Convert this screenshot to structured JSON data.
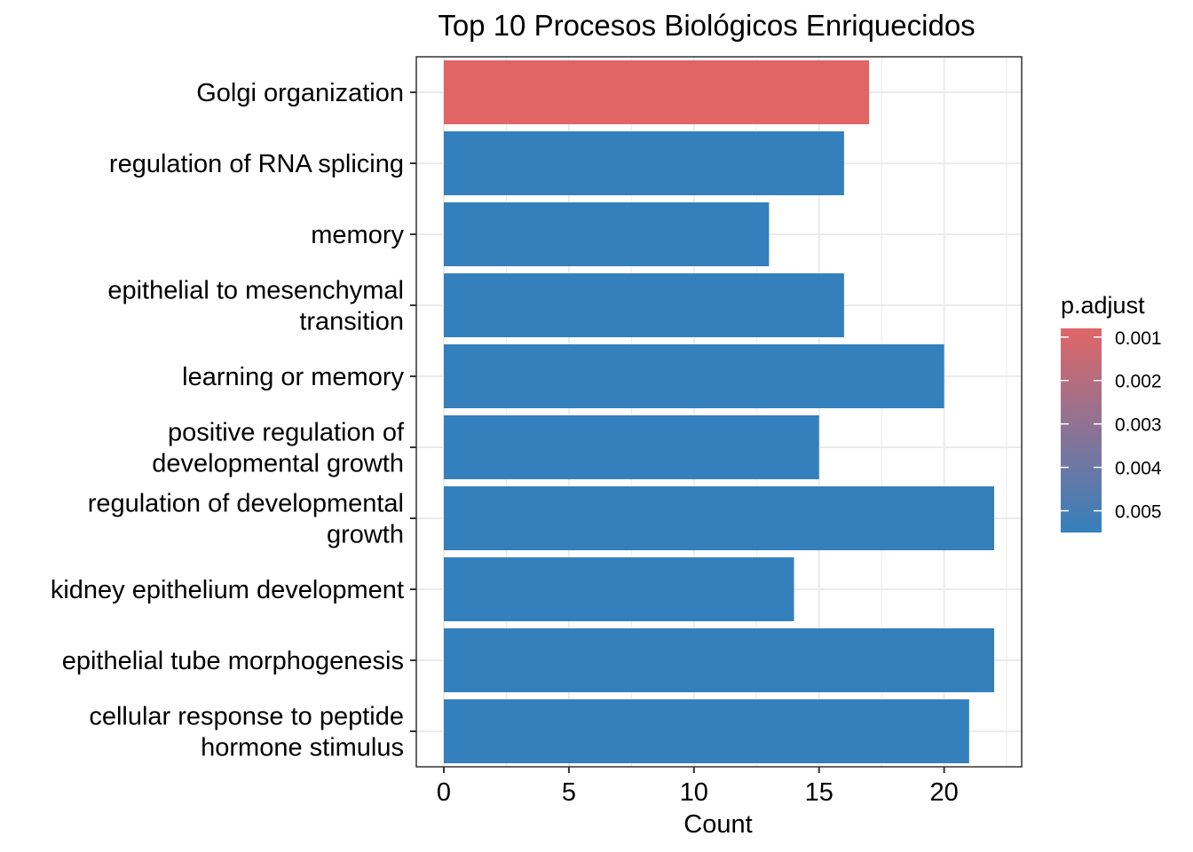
{
  "chart_data": {
    "type": "bar",
    "orientation": "horizontal",
    "title": "Top 10 Procesos Biológicos Enriquecidos",
    "xlabel": "Count",
    "ylabel": "",
    "xlim": [
      -1.1,
      23.1
    ],
    "xticks": [
      "0",
      "5",
      "10",
      "15",
      "20"
    ],
    "grid": true,
    "categories": [
      [
        "Golgi organization"
      ],
      [
        "regulation of RNA splicing"
      ],
      [
        "memory"
      ],
      [
        "epithelial to mesenchymal",
        "transition"
      ],
      [
        "learning or memory"
      ],
      [
        "positive regulation of",
        "developmental growth"
      ],
      [
        "regulation of developmental",
        "growth"
      ],
      [
        "kidney epithelium development"
      ],
      [
        "epithelial tube morphogenesis"
      ],
      [
        "cellular response to peptide",
        "hormone stimulus"
      ]
    ],
    "values": [
      17,
      16,
      13,
      16,
      20,
      15,
      22,
      14,
      22,
      21
    ],
    "bar_colors": [
      "#E06666",
      "#3480BC",
      "#3480BC",
      "#3480BC",
      "#3480BC",
      "#3480BC",
      "#3480BC",
      "#3480BC",
      "#3480BC",
      "#3480BC"
    ],
    "legend": {
      "title": "p.adjust",
      "placement": "right",
      "color_low": "#E06666",
      "color_high": "#3480BC",
      "range": [
        0.0008,
        0.0055
      ],
      "ticks": [
        {
          "value": 0.001,
          "label": "0.001"
        },
        {
          "value": 0.002,
          "label": "0.002"
        },
        {
          "value": 0.003,
          "label": "0.003"
        },
        {
          "value": 0.004,
          "label": "0.004"
        },
        {
          "value": 0.005,
          "label": "0.005"
        }
      ]
    }
  }
}
